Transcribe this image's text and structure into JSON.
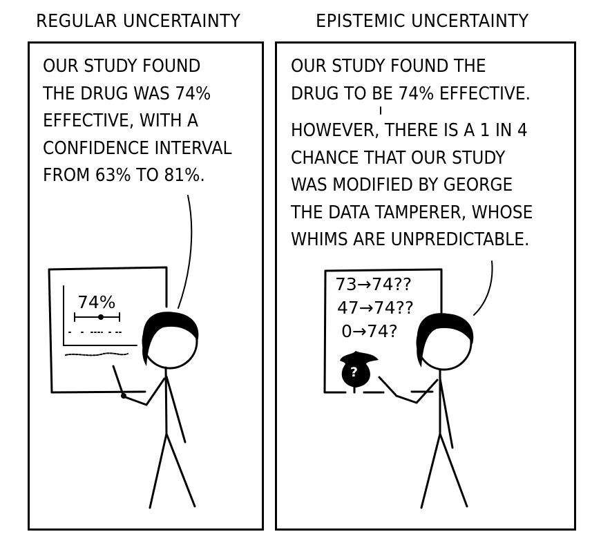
{
  "titles": {
    "left": "REGULAR UNCERTAINTY",
    "right": "EPISTEMIC UNCERTAINTY"
  },
  "left_panel": {
    "caption": "OUR STUDY FOUND\nTHE DRUG WAS 74%\nEFFECTIVE, WITH A\nCONFIDENCE INTERVAL\nFROM 63% TO 81%.",
    "board_value": "74%"
  },
  "right_panel": {
    "caption_1": "OUR STUDY FOUND THE\nDRUG TO BE 74% EFFECTIVE.",
    "caption_2": "HOWEVER, THERE IS A 1 IN 4\nCHANCE THAT OUR STUDY\nWAS MODIFIED BY GEORGE\nTHE DATA TAMPERER, WHOSE\nWHIMS ARE UNPREDICTABLE.",
    "board_lines": [
      "73→74??",
      "47→74??",
      "0→74?"
    ],
    "hat_mark": "?"
  }
}
